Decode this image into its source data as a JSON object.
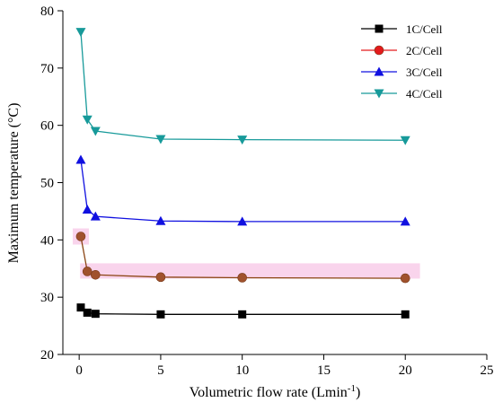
{
  "chart_data": {
    "type": "line",
    "xlabel": "Volumetric flow rate (Lmin",
    "xlabel_sup": "-1",
    "xlabel_close": ")",
    "ylabel": "Maximum temperature (°C)",
    "xlim": [
      -1,
      25
    ],
    "ylim": [
      20,
      80
    ],
    "xticks": [
      0,
      5,
      10,
      15,
      20,
      25
    ],
    "yticks": [
      20,
      30,
      40,
      50,
      60,
      70,
      80
    ],
    "legend_position": "top-right",
    "series": [
      {
        "name": "1C/Cell",
        "color": "#000000",
        "marker": "square",
        "x": [
          0.1,
          0.5,
          1,
          5,
          10,
          20
        ],
        "y": [
          28.2,
          27.3,
          27.1,
          27.0,
          27.0,
          27.0
        ]
      },
      {
        "name": "2C/Cell",
        "color": "#e31a1c",
        "marker": "circle",
        "x": [
          0.1,
          0.5,
          1,
          5,
          10,
          20
        ],
        "y": [
          40.6,
          34.5,
          33.9,
          33.5,
          33.4,
          33.3
        ]
      },
      {
        "name": "3C/Cell",
        "color": "#1010e0",
        "marker": "triangle-up",
        "x": [
          0.1,
          0.5,
          1,
          5,
          10,
          20
        ],
        "y": [
          54.0,
          45.3,
          44.1,
          43.3,
          43.2,
          43.2
        ]
      },
      {
        "name": "4C/Cell",
        "color": "#179a9a",
        "marker": "triangle-down",
        "x": [
          0.1,
          0.5,
          1,
          5,
          10,
          20
        ],
        "y": [
          76.3,
          61.0,
          59.0,
          57.6,
          57.5,
          57.4
        ]
      }
    ]
  }
}
